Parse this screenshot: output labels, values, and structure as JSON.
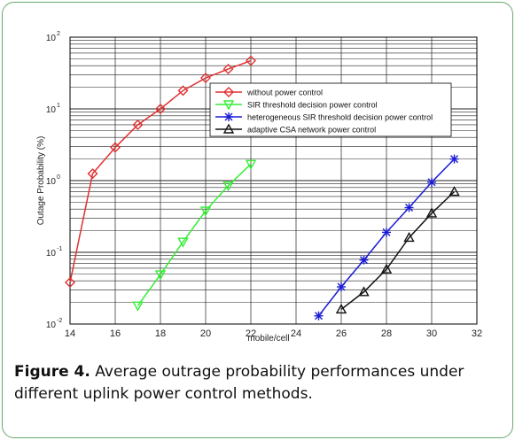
{
  "caption": {
    "label": "Figure 4.",
    "text": "Average outrage probability performances under different uplink power control methods."
  },
  "chart_data": {
    "type": "line",
    "xlabel": "mobile/cell",
    "ylabel": "Outage Probability (%)",
    "xlim": [
      14,
      32
    ],
    "ylim": [
      0.01,
      100
    ],
    "yscale": "log",
    "x_ticks": [
      "14",
      "16",
      "18",
      "20",
      "22",
      "24",
      "26",
      "28",
      "30",
      "32"
    ],
    "y_ticks": [
      {
        "base": "10",
        "exp": "-2"
      },
      {
        "base": "10",
        "exp": "-1"
      },
      {
        "base": "10",
        "exp": "0"
      },
      {
        "base": "10",
        "exp": "1"
      },
      {
        "base": "10",
        "exp": "2"
      }
    ],
    "grid": true,
    "legend_position": "top-right",
    "series": [
      {
        "name": "without power control",
        "color": "#e03030",
        "marker": "diamond",
        "x": [
          14,
          15,
          16,
          17,
          18,
          19,
          20,
          21,
          22
        ],
        "y": [
          0.038,
          1.25,
          2.9,
          6.0,
          10.0,
          18.0,
          27.0,
          36.0,
          47.0
        ]
      },
      {
        "name": "SIR threshold decision power control",
        "color": "#33ee33",
        "marker": "triangle-down",
        "x": [
          17,
          18,
          19,
          20,
          21,
          22
        ],
        "y": [
          0.018,
          0.049,
          0.14,
          0.38,
          0.85,
          1.7
        ]
      },
      {
        "name": "heterogeneous SIR threshold decision power control",
        "color": "#1c1cd6",
        "marker": "star",
        "x": [
          25,
          26,
          27,
          28,
          29,
          30,
          31
        ],
        "y": [
          0.013,
          0.033,
          0.078,
          0.19,
          0.42,
          0.95,
          2.0
        ]
      },
      {
        "name": "adaptive CSA network power control",
        "color": "#111111",
        "marker": "triangle-up",
        "x": [
          26,
          27,
          28,
          29,
          30,
          31
        ],
        "y": [
          0.016,
          0.028,
          0.058,
          0.16,
          0.35,
          0.7
        ]
      }
    ]
  }
}
